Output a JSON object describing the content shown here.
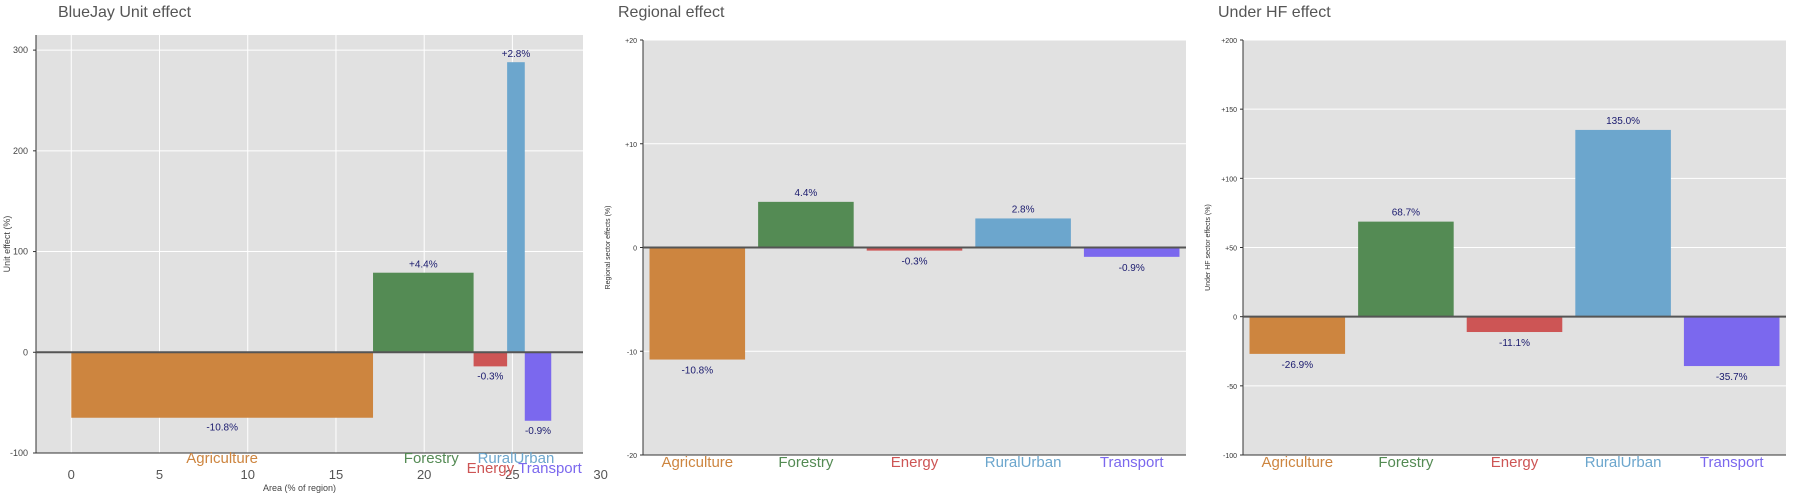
{
  "chart_data": [
    {
      "type": "bar",
      "title": "BlueJay Unit effect",
      "xlabel": "Area (% of region)",
      "ylabel": "Unit effect (%)",
      "xlim": [
        -2,
        29
      ],
      "ylim": [
        -100,
        315
      ],
      "xticks": [
        0,
        5,
        10,
        15,
        20,
        25,
        30
      ],
      "yticks": [
        -100,
        0,
        100,
        200,
        300
      ],
      "ytick_labels": [
        "-100",
        "0",
        "100",
        "200",
        "300"
      ],
      "categories": [
        "Agriculture",
        "Forestry",
        "Energy",
        "RuralUrban",
        "Transport"
      ],
      "colors": [
        "#cd853f",
        "#548b54",
        "#cd5555",
        "#6ca6cd",
        "#7b68ee"
      ],
      "x_start": [
        0,
        17.1,
        22.8,
        24.7,
        25.7
      ],
      "x_end": [
        17.1,
        22.8,
        24.7,
        25.7,
        27.2
      ],
      "values": [
        -65,
        79,
        -14,
        288,
        -68
      ],
      "data_labels": [
        "-10.8%",
        "+4.4%",
        "-0.3%",
        "+2.8%",
        "-0.9%"
      ],
      "grid": true
    },
    {
      "type": "bar",
      "title": "Regional effect",
      "xlabel": "",
      "ylabel": "Regional sector effects (%)",
      "ylim": [
        -20,
        20
      ],
      "yticks": [
        -20,
        -10,
        0,
        10,
        20
      ],
      "ytick_labels": [
        "-20",
        "-10",
        "0",
        "+10",
        "+20"
      ],
      "categories": [
        "Agriculture",
        "Forestry",
        "Energy",
        "RuralUrban",
        "Transport"
      ],
      "colors": [
        "#cd853f",
        "#548b54",
        "#cd5555",
        "#6ca6cd",
        "#7b68ee"
      ],
      "values": [
        -10.8,
        4.4,
        -0.3,
        2.8,
        -0.9
      ],
      "data_labels": [
        "-10.8%",
        "4.4%",
        "-0.3%",
        "2.8%",
        "-0.9%"
      ],
      "grid": true
    },
    {
      "type": "bar",
      "title": "Under HF effect",
      "xlabel": "",
      "ylabel": "Under HF sector effects (%)",
      "ylim": [
        -100,
        200
      ],
      "yticks": [
        -100,
        -50,
        0,
        50,
        100,
        150,
        200
      ],
      "ytick_labels": [
        "-100",
        "-50",
        "0",
        "+50",
        "+100",
        "+150",
        "+200"
      ],
      "categories": [
        "Agriculture",
        "Forestry",
        "Energy",
        "RuralUrban",
        "Transport"
      ],
      "colors": [
        "#cd853f",
        "#548b54",
        "#cd5555",
        "#6ca6cd",
        "#7b68ee"
      ],
      "values": [
        -26.9,
        68.7,
        -11.1,
        135.0,
        -35.7
      ],
      "data_labels": [
        "-26.9%",
        "68.7%",
        "-11.1%",
        "135.0%",
        "-35.7%"
      ],
      "grid": true
    }
  ]
}
